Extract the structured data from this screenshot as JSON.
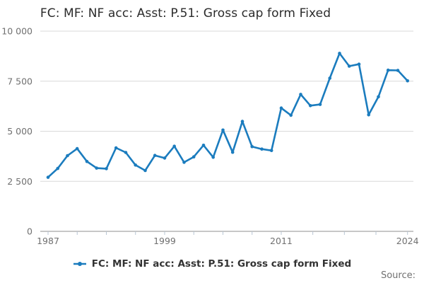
{
  "title": "FC: MF: NF acc: Asst: P.51: Gross cap form Fixed",
  "legend": {
    "label": "FC: MF: NF acc: Asst: P.51: Gross cap form Fixed"
  },
  "source_label": "Source:",
  "colors": {
    "line": "#1b7cbe",
    "grid": "#d9d9d9",
    "axis": "#8f8f8f",
    "muted_text": "#707070",
    "title_text": "#2b2b2b"
  },
  "chart_data": {
    "type": "line",
    "title": "FC: MF: NF acc: Asst: P.51: Gross cap form Fixed",
    "xlabel": "",
    "ylabel": "",
    "x": [
      1987,
      1988,
      1989,
      1990,
      1991,
      1992,
      1993,
      1994,
      1995,
      1996,
      1997,
      1998,
      1999,
      2000,
      2001,
      2002,
      2003,
      2004,
      2005,
      2006,
      2007,
      2008,
      2009,
      2010,
      2011,
      2012,
      2013,
      2014,
      2015,
      2016,
      2017,
      2018,
      2019,
      2020,
      2021,
      2022,
      2023,
      2024
    ],
    "values": [
      2700,
      3140,
      3780,
      4130,
      3490,
      3160,
      3130,
      4170,
      3940,
      3310,
      3040,
      3790,
      3660,
      4250,
      3450,
      3720,
      4300,
      3700,
      5060,
      3950,
      5490,
      4230,
      4110,
      4040,
      6160,
      5800,
      6840,
      6280,
      6340,
      7650,
      8890,
      8250,
      8350,
      5820,
      6720,
      8050,
      8040,
      7520
    ],
    "series_name": "FC: MF: NF acc: Asst: P.51: Gross cap form Fixed",
    "ylim": [
      0,
      10000
    ],
    "ytick_values": [
      0,
      2500,
      5000,
      7500,
      10000
    ],
    "ytick_labels": [
      "0",
      "2 500",
      "5 000",
      "7 500",
      "10 000"
    ],
    "xtick_years": [
      1987,
      1999,
      2011,
      2024
    ],
    "xtick_labels": [
      "1987",
      "1999",
      "2011",
      "2024"
    ],
    "grid": "horizontal",
    "legend_position": "bottom",
    "marker": "dot"
  }
}
